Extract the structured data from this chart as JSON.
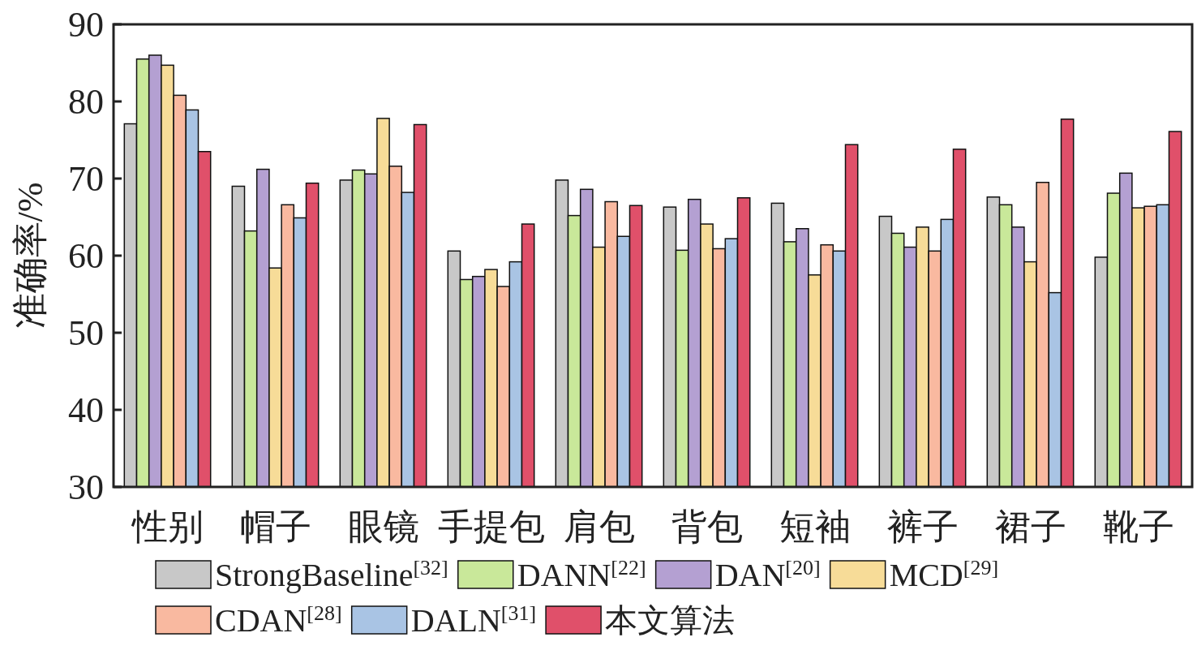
{
  "chart_data": {
    "type": "bar",
    "ylabel": "准确率/%",
    "categories": [
      "性别",
      "帽子",
      "眼镜",
      "手提包",
      "肩包",
      "背包",
      "短袖",
      "裤子",
      "裙子",
      "靴子"
    ],
    "ylim": [
      30,
      90
    ],
    "yticks": [
      30,
      40,
      50,
      60,
      70,
      80,
      90
    ],
    "grid": false,
    "legend": "bottom",
    "series": [
      {
        "name": "StrongBaseline$^{[32]}$",
        "color": "#c8c8c8",
        "values": [
          77.1,
          69.0,
          69.8,
          60.6,
          69.8,
          66.3,
          66.8,
          65.1,
          67.6,
          59.8
        ]
      },
      {
        "name": "DANN$^{[22]}$",
        "color": "#c9e89a",
        "values": [
          85.5,
          63.2,
          71.1,
          56.9,
          65.2,
          60.7,
          61.8,
          62.9,
          66.6,
          68.1
        ]
      },
      {
        "name": "DAN$^{[20]}$",
        "color": "#b4a0d2",
        "values": [
          86.0,
          71.2,
          70.6,
          57.3,
          68.6,
          67.3,
          63.5,
          61.1,
          63.7,
          70.7
        ]
      },
      {
        "name": "MCD$^{[29]}$",
        "color": "#f7dc98",
        "values": [
          84.7,
          58.4,
          77.8,
          58.2,
          61.1,
          64.1,
          57.5,
          63.7,
          59.2,
          66.2
        ]
      },
      {
        "name": "CDAN$^{[28]}$",
        "color": "#f9b9a0",
        "values": [
          80.8,
          66.6,
          71.6,
          56.0,
          67.0,
          60.9,
          61.4,
          60.6,
          69.5,
          66.4
        ]
      },
      {
        "name": "DALN$^{[31]}$",
        "color": "#a9c4e4",
        "values": [
          78.9,
          64.9,
          68.2,
          59.2,
          62.5,
          62.2,
          60.6,
          64.7,
          55.2,
          66.6
        ]
      },
      {
        "name": "本文算法",
        "color": "#e0506a",
        "values": [
          73.5,
          69.4,
          77.0,
          64.1,
          66.5,
          67.5,
          74.4,
          73.8,
          77.7,
          76.1
        ]
      }
    ]
  }
}
